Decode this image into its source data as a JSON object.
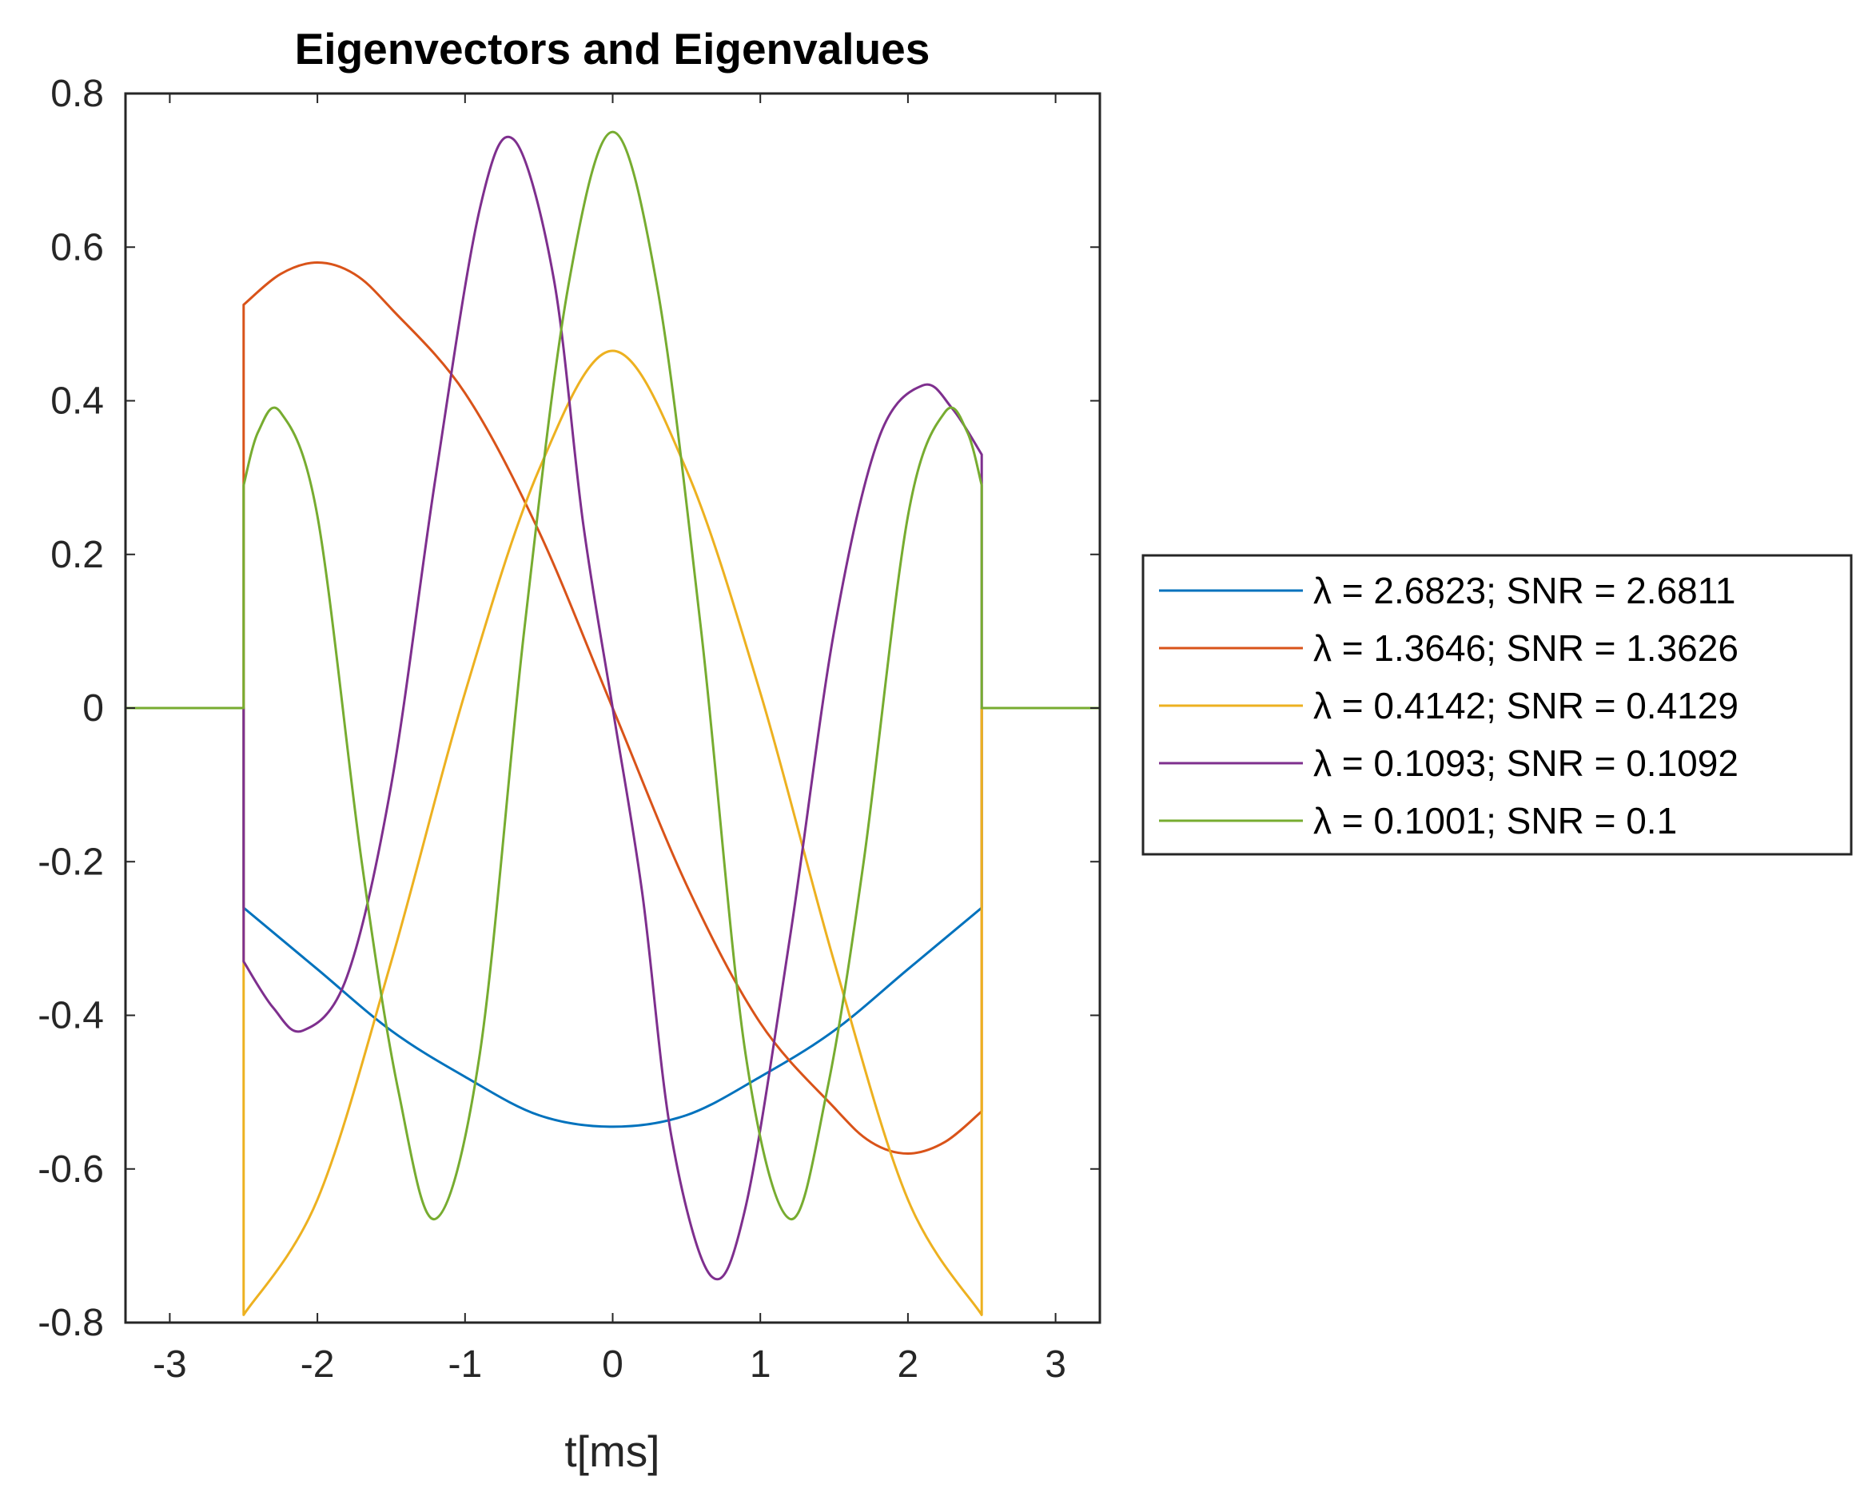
{
  "chart_data": {
    "type": "line",
    "title": "Eigenvectors and Eigenvalues",
    "xlabel": "t[ms]",
    "ylabel": "",
    "xlim": [
      -3.3,
      3.3
    ],
    "ylim": [
      -0.8,
      0.8
    ],
    "xticks": [
      -3,
      -2,
      -1,
      0,
      1,
      2,
      3
    ],
    "xtick_labels": [
      "-3",
      "-2",
      "-1",
      "0",
      "1",
      "2",
      "3"
    ],
    "yticks": [
      -0.8,
      -0.6,
      -0.4,
      -0.2,
      0,
      0.2,
      0.4,
      0.6,
      0.8
    ],
    "ytick_labels": [
      "-0.8",
      "-0.6",
      "-0.4",
      "-0.2",
      "0",
      "0.2",
      "0.4",
      "0.6",
      "0.8"
    ],
    "grid": false,
    "legend_position": "outside-right",
    "support_interval": [
      -2.5,
      2.5
    ],
    "series": [
      {
        "name": "λ = 2.6823;   SNR = 2.6811",
        "color": "#0072BD",
        "x": [
          -3.3,
          -2.5,
          -2.5,
          -2.0,
          -1.5,
          -1.0,
          -0.5,
          0.0,
          0.5,
          1.0,
          1.5,
          2.0,
          2.5,
          2.5,
          3.3
        ],
        "y": [
          0,
          0,
          -0.26,
          -0.34,
          -0.42,
          -0.48,
          -0.53,
          -0.545,
          -0.53,
          -0.48,
          -0.42,
          -0.34,
          -0.26,
          0,
          0
        ]
      },
      {
        "name": "λ = 1.3646;   SNR = 1.3626",
        "color": "#D95319",
        "x": [
          -3.3,
          -2.5,
          -2.5,
          -2.25,
          -2.0,
          -1.75,
          -1.5,
          -1.0,
          -0.5,
          0.0,
          0.5,
          1.0,
          1.5,
          1.75,
          2.0,
          2.25,
          2.5,
          2.5,
          3.3
        ],
        "y": [
          0,
          0,
          0.525,
          0.565,
          0.58,
          0.565,
          0.52,
          0.41,
          0.23,
          0.0,
          -0.23,
          -0.41,
          -0.52,
          -0.565,
          -0.58,
          -0.565,
          -0.525,
          0,
          0
        ]
      },
      {
        "name": "λ = 0.4142;   SNR = 0.4129",
        "color": "#EDB120",
        "x": [
          -3.3,
          -2.5,
          -2.5,
          -2.0,
          -1.5,
          -1.0,
          -0.5,
          0.0,
          0.5,
          1.0,
          1.5,
          2.0,
          2.5,
          2.5,
          3.3
        ],
        "y": [
          0,
          0,
          -0.79,
          -0.64,
          -0.33,
          0.02,
          0.31,
          0.465,
          0.31,
          0.02,
          -0.33,
          -0.64,
          -0.79,
          0,
          0
        ]
      },
      {
        "name": "λ = 0.1093;   SNR = 0.1092",
        "color": "#7E2F8E",
        "x": [
          -3.3,
          -2.5,
          -2.5,
          -2.3,
          -2.1,
          -1.8,
          -1.5,
          -1.2,
          -0.9,
          -0.67,
          -0.4,
          -0.2,
          0.0,
          0.2,
          0.4,
          0.67,
          0.9,
          1.2,
          1.5,
          1.8,
          2.1,
          2.3,
          2.5,
          2.5,
          3.3
        ],
        "y": [
          0,
          0,
          -0.33,
          -0.39,
          -0.42,
          -0.35,
          -0.1,
          0.3,
          0.65,
          0.74,
          0.56,
          0.24,
          0.0,
          -0.24,
          -0.56,
          -0.74,
          -0.65,
          -0.3,
          0.1,
          0.35,
          0.42,
          0.39,
          0.33,
          0,
          0
        ]
      },
      {
        "name": "λ = 0.1001;   SNR = 0.1",
        "color": "#77AC30",
        "x": [
          -3.3,
          -2.5,
          -2.5,
          -2.4,
          -2.25,
          -2.0,
          -1.7,
          -1.45,
          -1.2,
          -0.9,
          -0.6,
          -0.3,
          0.0,
          0.3,
          0.6,
          0.9,
          1.2,
          1.45,
          1.7,
          2.0,
          2.25,
          2.4,
          2.5,
          2.5,
          3.3
        ],
        "y": [
          0,
          0,
          0.29,
          0.36,
          0.385,
          0.25,
          -0.2,
          -0.5,
          -0.665,
          -0.45,
          0.1,
          0.55,
          0.75,
          0.55,
          0.1,
          -0.45,
          -0.665,
          -0.5,
          -0.2,
          0.25,
          0.385,
          0.36,
          0.29,
          0,
          0
        ]
      }
    ]
  }
}
